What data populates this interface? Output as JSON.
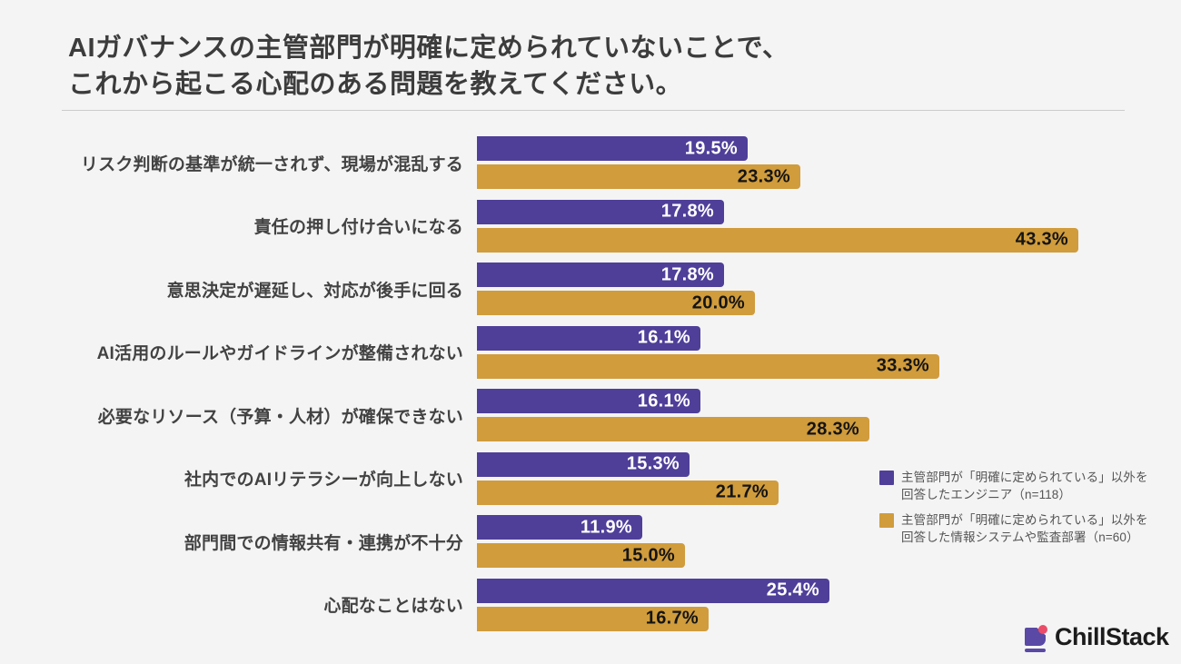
{
  "title": {
    "line1": "AIガバナンスの主管部門が明確に定められていないことで、",
    "line2": "これから起こる心配のある問題を教えてください。"
  },
  "colors": {
    "background": "#f4f4f5",
    "series_engineer": "#4f3f99",
    "series_infosys": "#d09c3c",
    "title_text": "#3c3c3c",
    "category_text": "#424242",
    "legend_text": "#555555",
    "value_on_purple": "#ffffff",
    "value_on_gold": "#141414",
    "logo_purple": "#5a49a5",
    "logo_pink": "#ea4d68"
  },
  "legend": {
    "items": [
      {
        "line1": "主管部門が「明確に定められている」以外を",
        "line2": "回答したエンジニア（n=118）",
        "color": "#4f3f99"
      },
      {
        "line1": "主管部門が「明確に定められている」以外を",
        "line2": "回答した情報システムや監査部署（n=60）",
        "color": "#d09c3c"
      }
    ]
  },
  "logo": {
    "text": "ChillStack"
  },
  "chart_data": {
    "type": "bar",
    "orientation": "horizontal",
    "title": "AIガバナンスの主管部門が明確に定められていないことで、これから起こる心配のある問題を教えてください。",
    "categories": [
      "リスク判断の基準が統一されず、現場が混乱する",
      "責任の押し付け合いになる",
      "意思決定が遅延し、対応が後手に回る",
      "AI活用のルールやガイドラインが整備されない",
      "必要なリソース（予算・人材）が確保できない",
      "社内でのAIリテラシーが向上しない",
      "部門間での情報共有・連携が不十分",
      "心配なことはない"
    ],
    "series": [
      {
        "name": "主管部門が「明確に定められている」以外を回答したエンジニア（n=118）",
        "color": "#4f3f99",
        "values": [
          19.5,
          17.8,
          17.8,
          16.1,
          16.1,
          15.3,
          11.9,
          25.4
        ]
      },
      {
        "name": "主管部門が「明確に定められている」以外を回答した情報システムや監査部署（n=60）",
        "color": "#d09c3c",
        "values": [
          23.3,
          43.3,
          20.0,
          33.3,
          28.3,
          21.7,
          15.0,
          16.7
        ]
      }
    ],
    "value_suffix": "%",
    "value_decimals": 1,
    "xlim": [
      0,
      44
    ],
    "grid": false,
    "legend_position": "right-middle",
    "value_labels": "inside-end"
  }
}
